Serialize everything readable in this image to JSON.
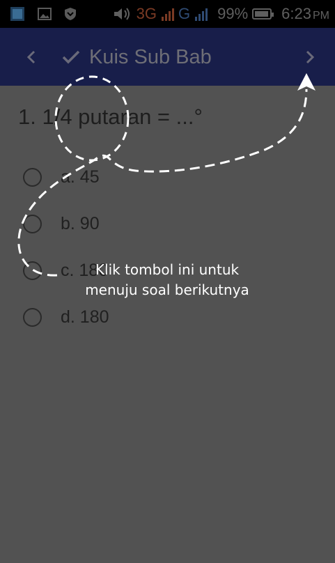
{
  "status_bar": {
    "network_3g": "3G",
    "network_g": "G",
    "battery_percent": "99%",
    "time": "6:23",
    "ampm": "PM"
  },
  "app_bar": {
    "title": "Kuis Sub Bab",
    "back_icon": "chevron-left-icon",
    "check_icon": "check-icon",
    "next_icon": "chevron-right-icon"
  },
  "quiz": {
    "question": "1. 1/4 putaran = ...°",
    "options": [
      "a. 45",
      "b. 90",
      "c. 180",
      "d. 180"
    ],
    "selected": null
  },
  "tutorial_overlay": {
    "hint_line1": "Klik tombol ini untuk",
    "hint_line2": "menuju soal berikutnya"
  },
  "colors": {
    "status_bar": "#000000",
    "app_bar": "#181e4a",
    "overlay": "#525252",
    "hint_text": "#ffffff"
  }
}
